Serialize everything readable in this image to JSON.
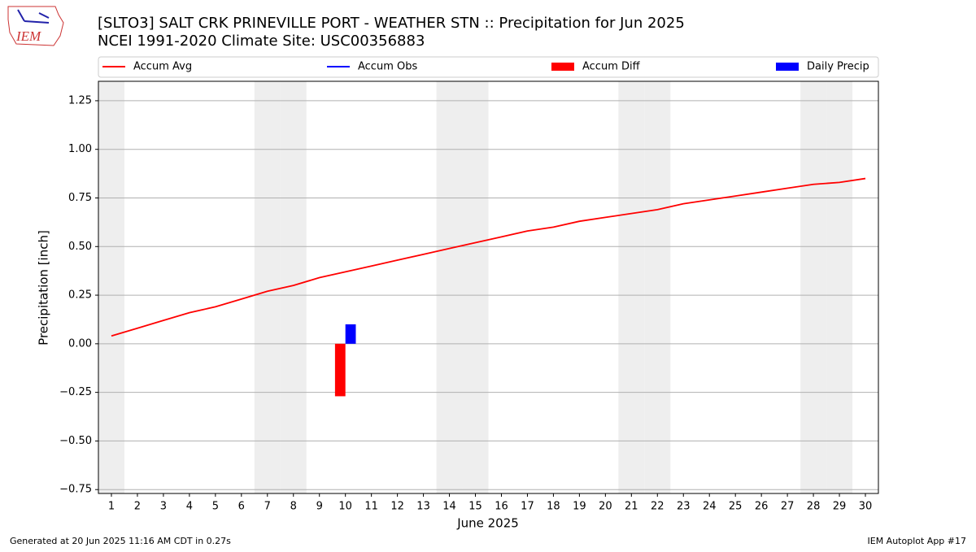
{
  "chart_data": {
    "type": "line",
    "title": "[SLTO3] SALT CRK  PRINEVILLE PORT - WEATHER STN :: Precipitation for Jun 2025",
    "subtitle": "NCEI 1991-2020 Climate Site: USC00356883",
    "logo_text": "IEM",
    "x_label": "June 2025",
    "y_label": "Precipitation [inch]",
    "footer_left": "Generated at 20 Jun 2025 11:16 AM CDT in 0.27s",
    "footer_right": "IEM Autoplot App #17",
    "x": [
      1,
      2,
      3,
      4,
      5,
      6,
      7,
      8,
      9,
      10,
      11,
      12,
      13,
      14,
      15,
      16,
      17,
      18,
      19,
      20,
      21,
      22,
      23,
      24,
      25,
      26,
      27,
      28,
      29,
      30
    ],
    "xlim": [
      0.5,
      30.5
    ],
    "xticks": [
      1,
      2,
      3,
      4,
      5,
      6,
      7,
      8,
      9,
      10,
      11,
      12,
      13,
      14,
      15,
      16,
      17,
      18,
      19,
      20,
      21,
      22,
      23,
      24,
      25,
      26,
      27,
      28,
      29,
      30
    ],
    "ylim": [
      -0.77,
      1.35
    ],
    "yticks": [
      {
        "value": -0.75,
        "label": "−0.75"
      },
      {
        "value": -0.5,
        "label": "−0.50"
      },
      {
        "value": -0.25,
        "label": "−0.25"
      },
      {
        "value": 0,
        "label": "0.00"
      },
      0.25,
      {
        "value": 0.5,
        "label": "0.50"
      },
      0.75,
      {
        "value": 1,
        "label": "1.00"
      },
      1.25
    ],
    "grid": true,
    "shaded_days": [
      1,
      7,
      8,
      14,
      15,
      21,
      22,
      28,
      29
    ],
    "series": [
      {
        "name": "Accum Avg",
        "kind": "line",
        "color": "#ff0000",
        "values": [
          0.04,
          0.08,
          0.12,
          0.16,
          0.19,
          0.23,
          0.27,
          0.3,
          0.34,
          0.37,
          0.4,
          0.43,
          0.46,
          0.49,
          0.52,
          0.55,
          0.58,
          0.6,
          0.63,
          0.65,
          0.67,
          0.69,
          0.72,
          0.74,
          0.76,
          0.78,
          0.8,
          0.82,
          0.83,
          0.85
        ]
      },
      {
        "name": "Accum Obs",
        "kind": "line",
        "color": "#0000ff",
        "values": [
          null,
          null,
          null,
          null,
          null,
          null,
          null,
          null,
          null,
          null,
          null,
          null,
          null,
          null,
          null,
          null,
          null,
          null,
          null,
          null,
          null,
          null,
          null,
          null,
          null,
          null,
          null,
          null,
          null,
          null
        ]
      },
      {
        "name": "Accum Diff",
        "kind": "bar",
        "color": "#ff0000",
        "values": [
          null,
          null,
          null,
          null,
          null,
          null,
          null,
          null,
          null,
          -0.27,
          null,
          null,
          null,
          null,
          null,
          null,
          null,
          null,
          null,
          null,
          null,
          null,
          null,
          null,
          null,
          null,
          null,
          null,
          null,
          null
        ]
      },
      {
        "name": "Daily Precip",
        "kind": "bar",
        "color": "#0000ff",
        "values": [
          null,
          null,
          null,
          null,
          null,
          null,
          null,
          null,
          null,
          0.1,
          null,
          null,
          null,
          null,
          null,
          null,
          null,
          null,
          null,
          null,
          null,
          null,
          null,
          null,
          null,
          null,
          null,
          null,
          null,
          null
        ]
      }
    ]
  }
}
